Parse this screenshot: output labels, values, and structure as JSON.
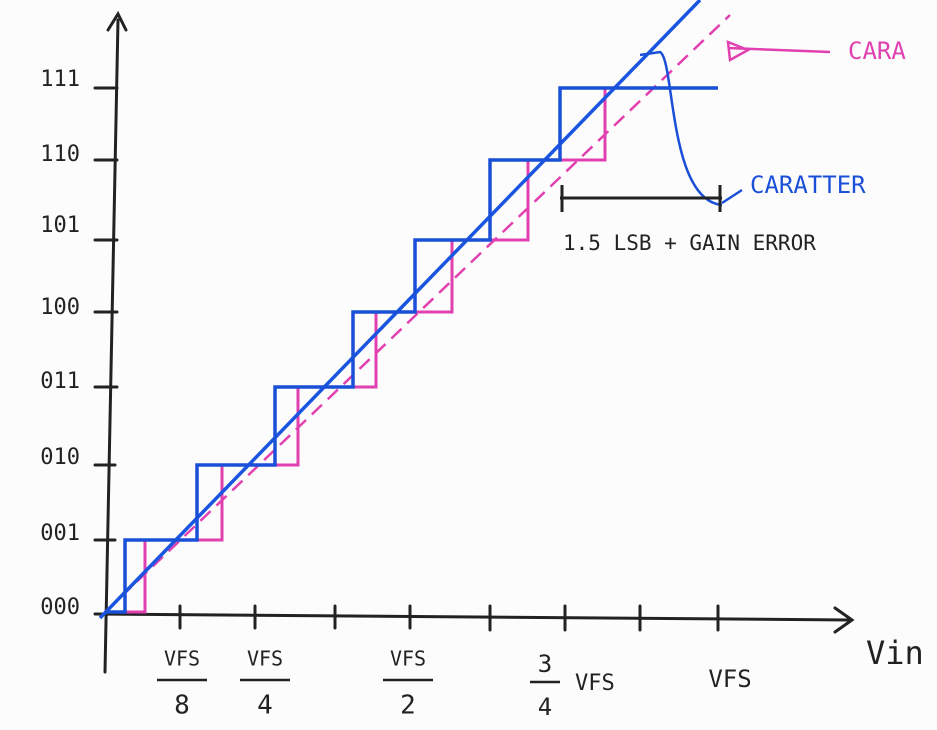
{
  "y_axis": {
    "labels": [
      "000",
      "001",
      "010",
      "011",
      "100",
      "101",
      "110",
      "111"
    ]
  },
  "x_axis": {
    "labels": [
      {
        "top": "VFS",
        "bottom": "8"
      },
      {
        "top": "VFS",
        "bottom": "4"
      },
      {
        "top": "VFS",
        "bottom": "2"
      },
      {
        "top": "3",
        "bottom": "4",
        "side": "VFS"
      },
      {
        "top": "VFS"
      }
    ],
    "title": "Vin"
  },
  "annotations": {
    "ideal": "CARA",
    "real": "CARATTER",
    "error": "1.5 LSB + GAIN ERROR"
  }
}
